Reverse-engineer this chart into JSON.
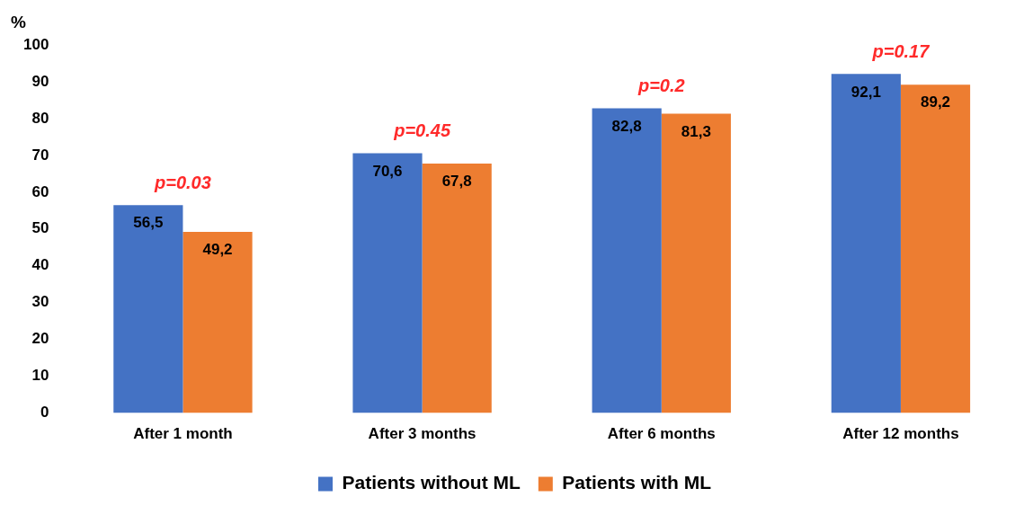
{
  "chart_data": {
    "type": "bar",
    "ylabel": "%",
    "categories": [
      "After 1 month",
      "After 3 months",
      "After 6 months",
      "After 12 months"
    ],
    "series": [
      {
        "name": "Patients without ML",
        "color": "#4472c4",
        "values": [
          56.5,
          70.6,
          82.8,
          92.1
        ],
        "value_labels": [
          "56,5",
          "70,6",
          "82,8",
          "92,1"
        ]
      },
      {
        "name": "Patients with ML",
        "color": "#ed7d31",
        "values": [
          49.2,
          67.8,
          81.3,
          89.2
        ],
        "value_labels": [
          "49,2",
          "67,8",
          "81,3",
          "89,2"
        ]
      }
    ],
    "ylim": [
      0,
      100
    ],
    "yticks": [
      0,
      10,
      20,
      30,
      40,
      50,
      60,
      70,
      80,
      90,
      100
    ],
    "grid": false,
    "legend": "bottom",
    "annotations": [
      "p=0.03",
      "p=0.45",
      "p=0.2",
      "p=0.17"
    ]
  }
}
